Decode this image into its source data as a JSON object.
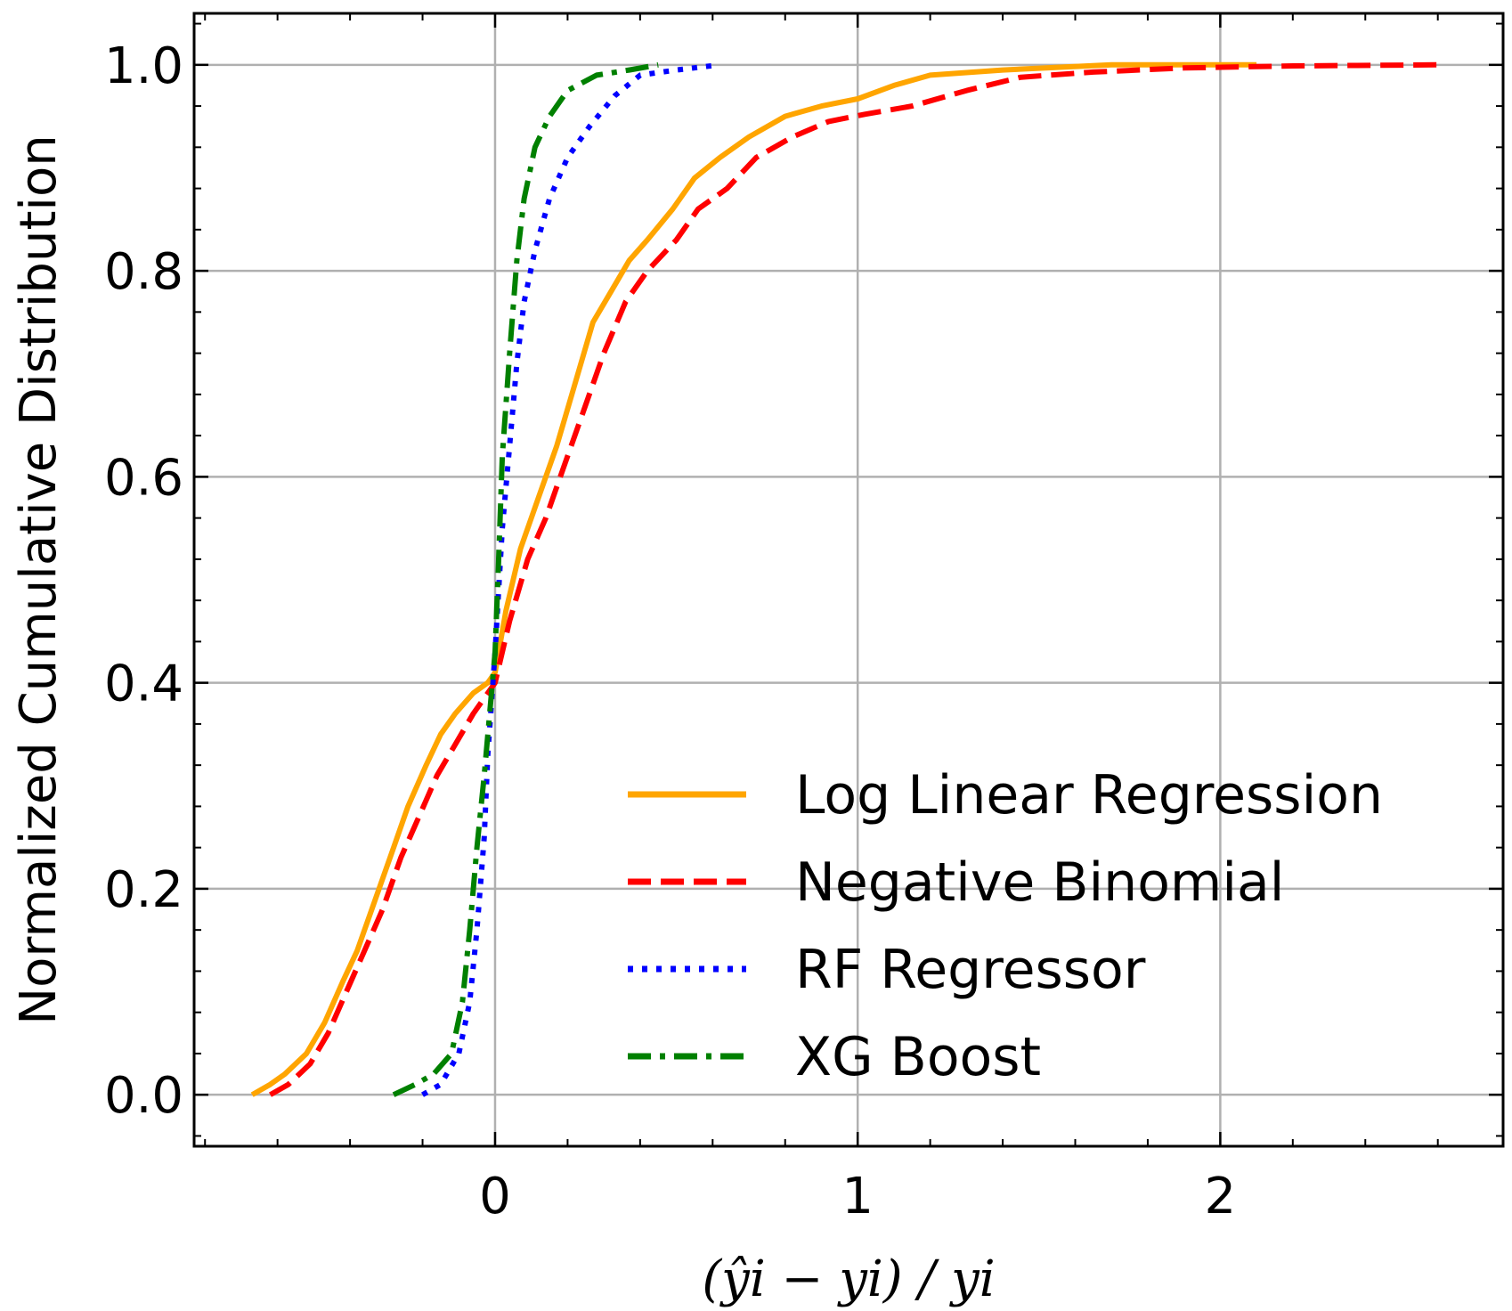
{
  "chart_data": {
    "type": "line",
    "title": "",
    "xlabel": "(ŷi − yi) / yi",
    "ylabel": "Normalized Cumulative Distribution",
    "xlim": [
      -0.83,
      2.78
    ],
    "ylim": [
      -0.05,
      1.05
    ],
    "x_ticks": [
      0,
      1,
      2
    ],
    "x_tick_labels": [
      "0",
      "1",
      "2"
    ],
    "y_ticks": [
      0.0,
      0.2,
      0.4,
      0.6,
      0.8,
      1.0
    ],
    "y_tick_labels": [
      "0.0",
      "0.2",
      "0.4",
      "0.6",
      "0.8",
      "1.0"
    ],
    "grid": true,
    "legend_position": "bottom-right",
    "series": [
      {
        "name": "Log Linear Regression",
        "color": "#FFA500",
        "dash": "solid",
        "points": [
          [
            -0.67,
            0.0
          ],
          [
            -0.62,
            0.01
          ],
          [
            -0.58,
            0.02
          ],
          [
            -0.52,
            0.04
          ],
          [
            -0.47,
            0.07
          ],
          [
            -0.42,
            0.11
          ],
          [
            -0.38,
            0.14
          ],
          [
            -0.33,
            0.19
          ],
          [
            -0.28,
            0.24
          ],
          [
            -0.24,
            0.28
          ],
          [
            -0.19,
            0.32
          ],
          [
            -0.15,
            0.35
          ],
          [
            -0.11,
            0.37
          ],
          [
            -0.06,
            0.39
          ],
          [
            -0.02,
            0.4
          ],
          [
            0.0,
            0.41
          ],
          [
            0.03,
            0.47
          ],
          [
            0.07,
            0.53
          ],
          [
            0.12,
            0.58
          ],
          [
            0.17,
            0.63
          ],
          [
            0.22,
            0.69
          ],
          [
            0.27,
            0.75
          ],
          [
            0.32,
            0.78
          ],
          [
            0.37,
            0.81
          ],
          [
            0.42,
            0.83
          ],
          [
            0.49,
            0.86
          ],
          [
            0.55,
            0.89
          ],
          [
            0.62,
            0.91
          ],
          [
            0.7,
            0.93
          ],
          [
            0.8,
            0.95
          ],
          [
            0.9,
            0.96
          ],
          [
            1.0,
            0.967
          ],
          [
            1.1,
            0.98
          ],
          [
            1.2,
            0.99
          ],
          [
            1.4,
            0.995
          ],
          [
            1.7,
            1.0
          ],
          [
            2.1,
            1.0
          ]
        ]
      },
      {
        "name": "Negative Binomial",
        "color": "#FF0000",
        "dash": "dashed",
        "points": [
          [
            -0.62,
            0.0
          ],
          [
            -0.57,
            0.01
          ],
          [
            -0.51,
            0.03
          ],
          [
            -0.46,
            0.06
          ],
          [
            -0.41,
            0.1
          ],
          [
            -0.36,
            0.14
          ],
          [
            -0.31,
            0.18
          ],
          [
            -0.26,
            0.23
          ],
          [
            -0.21,
            0.27
          ],
          [
            -0.16,
            0.31
          ],
          [
            -0.11,
            0.34
          ],
          [
            -0.06,
            0.37
          ],
          [
            -0.02,
            0.39
          ],
          [
            0.0,
            0.4
          ],
          [
            0.04,
            0.46
          ],
          [
            0.09,
            0.52
          ],
          [
            0.14,
            0.56
          ],
          [
            0.19,
            0.61
          ],
          [
            0.24,
            0.66
          ],
          [
            0.3,
            0.72
          ],
          [
            0.36,
            0.77
          ],
          [
            0.42,
            0.8
          ],
          [
            0.5,
            0.83
          ],
          [
            0.56,
            0.86
          ],
          [
            0.64,
            0.88
          ],
          [
            0.72,
            0.91
          ],
          [
            0.82,
            0.93
          ],
          [
            0.92,
            0.945
          ],
          [
            1.02,
            0.952
          ],
          [
            1.15,
            0.96
          ],
          [
            1.3,
            0.975
          ],
          [
            1.45,
            0.988
          ],
          [
            1.65,
            0.993
          ],
          [
            1.9,
            0.997
          ],
          [
            2.2,
            0.999
          ],
          [
            2.6,
            1.0
          ]
        ]
      },
      {
        "name": "RF Regressor",
        "color": "#0000FF",
        "dash": "dotted",
        "points": [
          [
            -0.2,
            0.0
          ],
          [
            -0.15,
            0.01
          ],
          [
            -0.1,
            0.04
          ],
          [
            -0.07,
            0.09
          ],
          [
            -0.05,
            0.16
          ],
          [
            -0.03,
            0.25
          ],
          [
            -0.02,
            0.33
          ],
          [
            -0.01,
            0.38
          ],
          [
            0.0,
            0.43
          ],
          [
            0.01,
            0.49
          ],
          [
            0.02,
            0.55
          ],
          [
            0.04,
            0.63
          ],
          [
            0.06,
            0.71
          ],
          [
            0.08,
            0.77
          ],
          [
            0.11,
            0.82
          ],
          [
            0.15,
            0.87
          ],
          [
            0.2,
            0.91
          ],
          [
            0.26,
            0.94
          ],
          [
            0.33,
            0.97
          ],
          [
            0.4,
            0.99
          ],
          [
            0.5,
            0.995
          ],
          [
            0.62,
            1.0
          ]
        ]
      },
      {
        "name": "XG Boost",
        "color": "#008000",
        "dash": "dashdot",
        "points": [
          [
            -0.28,
            0.0
          ],
          [
            -0.22,
            0.01
          ],
          [
            -0.17,
            0.02
          ],
          [
            -0.12,
            0.04
          ],
          [
            -0.09,
            0.09
          ],
          [
            -0.07,
            0.16
          ],
          [
            -0.05,
            0.24
          ],
          [
            -0.03,
            0.31
          ],
          [
            -0.015,
            0.37
          ],
          [
            0.0,
            0.43
          ],
          [
            0.01,
            0.52
          ],
          [
            0.02,
            0.62
          ],
          [
            0.04,
            0.72
          ],
          [
            0.06,
            0.81
          ],
          [
            0.08,
            0.87
          ],
          [
            0.11,
            0.92
          ],
          [
            0.15,
            0.95
          ],
          [
            0.2,
            0.975
          ],
          [
            0.28,
            0.99
          ],
          [
            0.37,
            0.995
          ],
          [
            0.45,
            1.0
          ]
        ]
      }
    ]
  }
}
